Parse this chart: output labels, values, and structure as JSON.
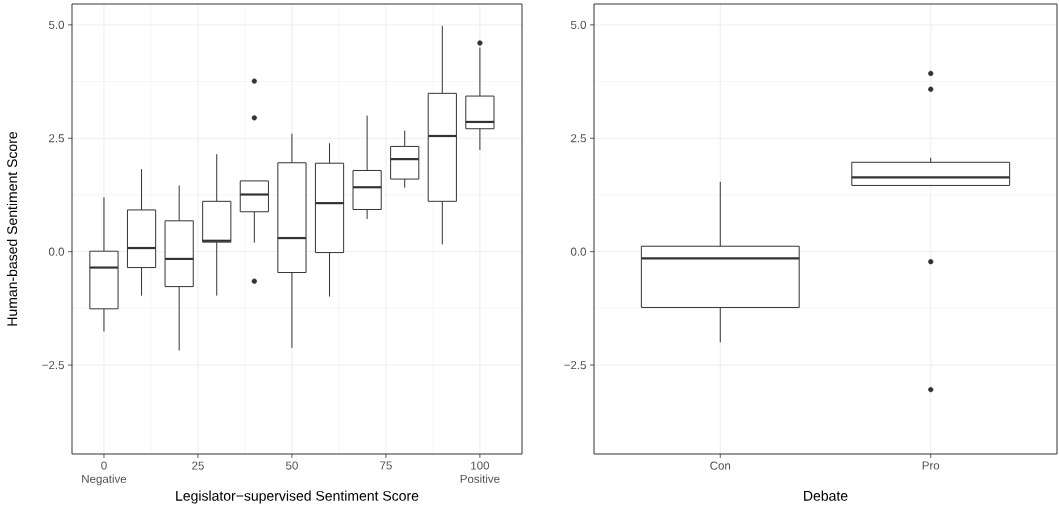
{
  "chart_data": [
    {
      "type": "box",
      "xlabel": "Legislator−supervised Sentiment Score",
      "ylabel": "Human-based Sentiment Score",
      "color": "#333333",
      "grid": true,
      "x": [
        0,
        10,
        20,
        30,
        40,
        50,
        60,
        70,
        80,
        90,
        100
      ],
      "boxes": [
        {
          "low": -1.76,
          "q1": -1.26,
          "median": -0.35,
          "q3": 0.01,
          "high": 1.2
        },
        {
          "low": -0.97,
          "q1": -0.35,
          "median": 0.08,
          "q3": 0.92,
          "high": 1.82
        },
        {
          "low": -2.18,
          "q1": -0.77,
          "median": -0.16,
          "q3": 0.68,
          "high": 1.46
        },
        {
          "low": -0.97,
          "q1": 0.21,
          "median": 0.24,
          "q3": 1.11,
          "high": 2.15
        },
        {
          "low": 0.2,
          "q1": 0.88,
          "median": 1.26,
          "q3": 1.56,
          "high": 1.56,
          "outliers": [
            3.76,
            2.95,
            -0.65
          ]
        },
        {
          "low": -2.12,
          "q1": -0.46,
          "median": 0.3,
          "q3": 1.96,
          "high": 2.6
        },
        {
          "low": -0.99,
          "q1": -0.02,
          "median": 1.07,
          "q3": 1.95,
          "high": 2.39
        },
        {
          "low": 0.72,
          "q1": 0.93,
          "median": 1.42,
          "q3": 1.79,
          "high": 3.0
        },
        {
          "low": 1.41,
          "q1": 1.6,
          "median": 2.04,
          "q3": 2.32,
          "high": 2.67
        },
        {
          "low": 0.16,
          "q1": 1.11,
          "median": 2.55,
          "q3": 3.49,
          "high": 4.98
        },
        {
          "low": 2.24,
          "q1": 2.71,
          "median": 2.86,
          "q3": 3.43,
          "high": 4.5,
          "outliers": [
            4.6
          ]
        }
      ],
      "xlim": [
        -8.5,
        111.2
      ],
      "xticks": [
        0,
        25,
        50,
        75,
        100
      ],
      "ylim": [
        -4.46,
        5.46
      ],
      "yticks": [
        {
          "value": -2.5,
          "label": "−2.5"
        },
        {
          "value": 0,
          "label": "0.0"
        },
        {
          "value": 2.5,
          "label": "2.5"
        },
        {
          "value": 5,
          "label": "5.0"
        }
      ],
      "annotations": [
        "Negative",
        "Positive"
      ]
    },
    {
      "type": "box",
      "xlabel": "Debate",
      "color": "#333333",
      "grid": true,
      "categories": [
        "Con",
        "Pro"
      ],
      "boxes": [
        {
          "low": -2.0,
          "q1": -1.23,
          "median": -0.15,
          "q3": 0.12,
          "high": 1.54
        },
        {
          "low": 1.46,
          "q1": 1.46,
          "median": 1.64,
          "q3": 1.97,
          "high": 2.07,
          "outliers": [
            3.93,
            3.58,
            -0.22,
            -3.04
          ]
        }
      ],
      "ylim": [
        -4.46,
        5.46
      ],
      "yticks": [
        {
          "value": -2.5,
          "label": "−2.5"
        },
        {
          "value": 0,
          "label": "0.0"
        },
        {
          "value": 2.5,
          "label": "2.5"
        },
        {
          "value": 5,
          "label": "5.0"
        }
      ]
    }
  ]
}
